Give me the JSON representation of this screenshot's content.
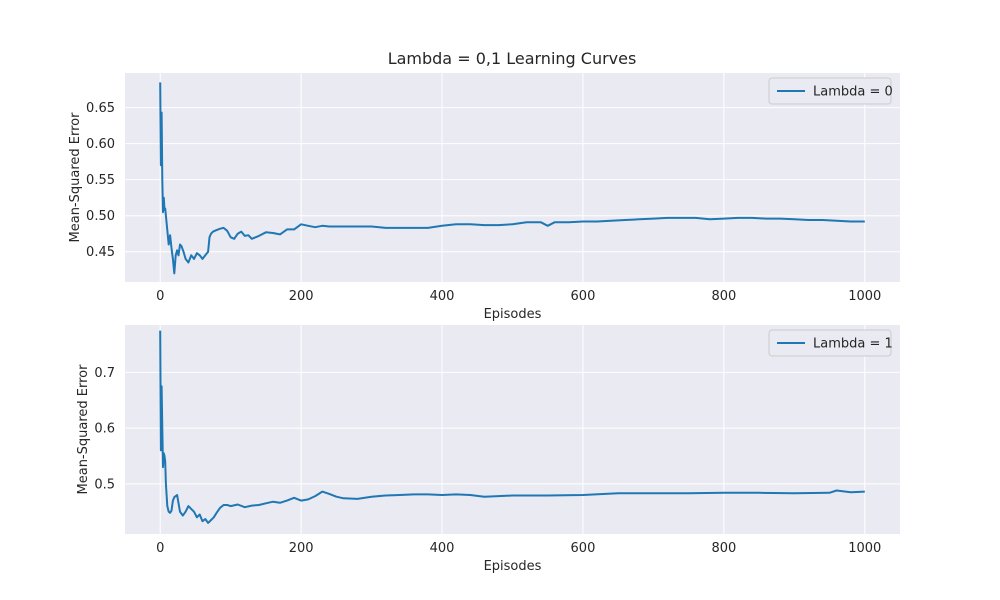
{
  "title": "Lambda = 0,1 Learning Curves",
  "colors": {
    "series": "#1f77b4",
    "plot_background": "#eaeaf2",
    "grid": "#ffffff"
  },
  "chart_data": [
    {
      "type": "line",
      "title": "Lambda = 0,1 Learning Curves",
      "xlabel": "Episodes",
      "ylabel": "Mean-Squared Error",
      "xlim": [
        -50,
        1050
      ],
      "ylim": [
        0.408,
        0.698
      ],
      "xticks": [
        0,
        200,
        400,
        600,
        800,
        1000
      ],
      "yticks": [
        0.45,
        0.5,
        0.55,
        0.6,
        0.65
      ],
      "ytick_labels": [
        "0.45",
        "0.50",
        "0.55",
        "0.60",
        "0.65"
      ],
      "grid": true,
      "legend_position": "top-right",
      "series": [
        {
          "name": "Lambda = 0",
          "x": [
            0,
            1,
            2,
            3,
            4,
            5,
            6,
            7,
            8,
            10,
            12,
            14,
            16,
            18,
            20,
            22,
            24,
            26,
            28,
            30,
            33,
            36,
            40,
            44,
            48,
            52,
            56,
            60,
            64,
            68,
            70,
            72,
            75,
            80,
            85,
            90,
            95,
            100,
            105,
            110,
            115,
            120,
            125,
            130,
            140,
            150,
            160,
            170,
            180,
            190,
            200,
            210,
            220,
            230,
            240,
            250,
            260,
            280,
            300,
            320,
            340,
            360,
            380,
            400,
            420,
            440,
            460,
            480,
            500,
            520,
            540,
            550,
            560,
            580,
            600,
            620,
            640,
            660,
            680,
            700,
            720,
            740,
            760,
            780,
            800,
            820,
            840,
            860,
            880,
            900,
            920,
            940,
            960,
            980,
            1000
          ],
          "values": [
            0.685,
            0.57,
            0.643,
            0.55,
            0.505,
            0.525,
            0.508,
            0.51,
            0.5,
            0.48,
            0.46,
            0.473,
            0.455,
            0.44,
            0.42,
            0.445,
            0.452,
            0.445,
            0.46,
            0.458,
            0.45,
            0.44,
            0.435,
            0.445,
            0.44,
            0.448,
            0.445,
            0.44,
            0.445,
            0.45,
            0.47,
            0.475,
            0.478,
            0.48,
            0.482,
            0.483,
            0.479,
            0.47,
            0.468,
            0.475,
            0.478,
            0.472,
            0.473,
            0.468,
            0.472,
            0.477,
            0.476,
            0.474,
            0.481,
            0.481,
            0.488,
            0.486,
            0.484,
            0.486,
            0.485,
            0.485,
            0.485,
            0.485,
            0.485,
            0.483,
            0.483,
            0.483,
            0.483,
            0.486,
            0.488,
            0.488,
            0.487,
            0.487,
            0.488,
            0.491,
            0.491,
            0.486,
            0.491,
            0.491,
            0.492,
            0.492,
            0.493,
            0.494,
            0.495,
            0.496,
            0.497,
            0.497,
            0.497,
            0.495,
            0.496,
            0.497,
            0.497,
            0.496,
            0.496,
            0.495,
            0.494,
            0.494,
            0.493,
            0.492,
            0.492
          ]
        }
      ]
    },
    {
      "type": "line",
      "title": "",
      "xlabel": "Episodes",
      "ylabel": "Mean-Squared Error",
      "xlim": [
        -50,
        1050
      ],
      "ylim": [
        0.41,
        0.785
      ],
      "xticks": [
        0,
        200,
        400,
        600,
        800,
        1000
      ],
      "yticks": [
        0.5,
        0.6,
        0.7
      ],
      "ytick_labels": [
        "0.5",
        "0.6",
        "0.7"
      ],
      "grid": true,
      "legend_position": "top-right",
      "series": [
        {
          "name": "Lambda = 1",
          "x": [
            0,
            1,
            2,
            3,
            4,
            5,
            6,
            7,
            8,
            10,
            12,
            14,
            16,
            18,
            20,
            24,
            28,
            32,
            36,
            40,
            44,
            48,
            52,
            56,
            60,
            64,
            68,
            72,
            76,
            80,
            85,
            90,
            95,
            100,
            110,
            120,
            130,
            140,
            150,
            160,
            170,
            180,
            190,
            200,
            210,
            220,
            230,
            240,
            250,
            260,
            280,
            300,
            320,
            340,
            360,
            380,
            400,
            420,
            440,
            460,
            480,
            500,
            550,
            600,
            650,
            700,
            750,
            800,
            850,
            900,
            950,
            960,
            980,
            1000
          ],
          "values": [
            0.775,
            0.56,
            0.675,
            0.6,
            0.53,
            0.555,
            0.55,
            0.54,
            0.5,
            0.46,
            0.45,
            0.448,
            0.452,
            0.47,
            0.476,
            0.48,
            0.45,
            0.443,
            0.45,
            0.46,
            0.455,
            0.45,
            0.44,
            0.445,
            0.433,
            0.437,
            0.43,
            0.435,
            0.44,
            0.448,
            0.457,
            0.462,
            0.462,
            0.46,
            0.463,
            0.458,
            0.461,
            0.462,
            0.465,
            0.468,
            0.466,
            0.47,
            0.475,
            0.47,
            0.472,
            0.478,
            0.486,
            0.482,
            0.477,
            0.474,
            0.473,
            0.477,
            0.479,
            0.48,
            0.481,
            0.481,
            0.48,
            0.481,
            0.48,
            0.477,
            0.478,
            0.479,
            0.479,
            0.48,
            0.483,
            0.483,
            0.483,
            0.484,
            0.484,
            0.483,
            0.484,
            0.488,
            0.485,
            0.486
          ]
        }
      ]
    }
  ]
}
